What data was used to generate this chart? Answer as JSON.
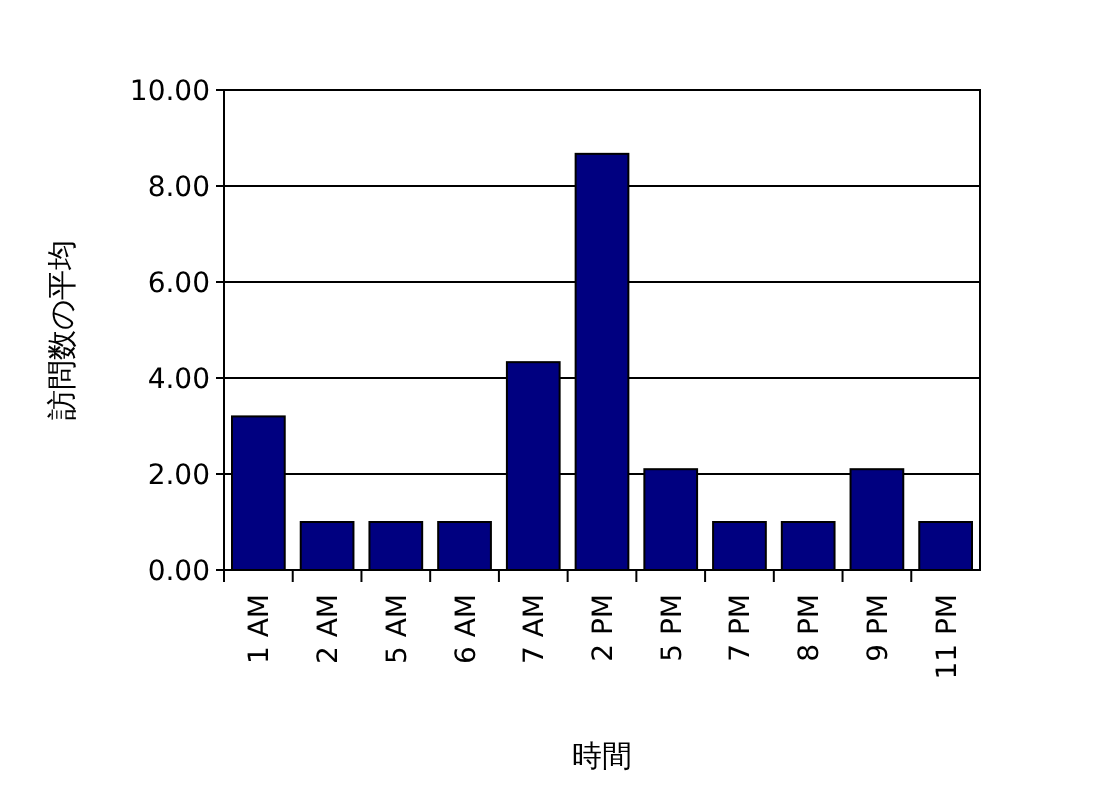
{
  "chart_data": {
    "type": "bar",
    "xlabel": "時間",
    "ylabel": "訪問数の平均",
    "categories": [
      "1 AM",
      "2 AM",
      "5 AM",
      "6 AM",
      "7 AM",
      "2 PM",
      "5 PM",
      "7 PM",
      "8 PM",
      "9 PM",
      "11 PM"
    ],
    "values": [
      3.2,
      1,
      1,
      1,
      4.33,
      8.67,
      2.1,
      1,
      1,
      2.1,
      1
    ],
    "color": "#000080",
    "ylim": [
      0,
      10
    ],
    "yticks": [
      {
        "value": 0,
        "label": "0.00"
      },
      {
        "value": 2,
        "label": "2.00"
      },
      {
        "value": 4,
        "label": "4.00"
      },
      {
        "value": 6,
        "label": "6.00"
      },
      {
        "value": 8,
        "label": "8.00"
      },
      {
        "value": 10,
        "label": "10.00"
      }
    ],
    "grid": "y"
  }
}
